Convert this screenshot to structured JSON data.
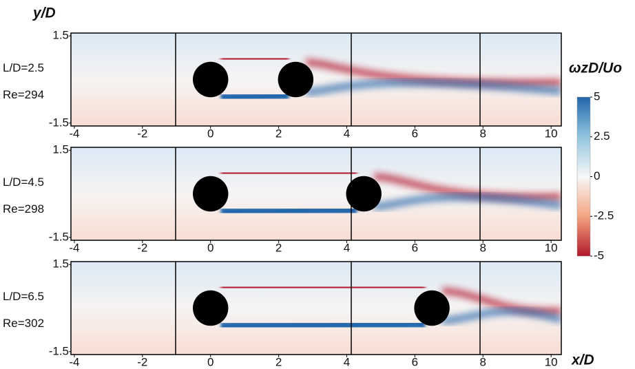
{
  "chart_data": [
    {
      "type": "contour",
      "y_label": "y/D",
      "annotations": [
        "L/D=2.5",
        "Re=294"
      ],
      "cylinders": [
        0,
        2.5
      ],
      "xlim": [
        -4.1,
        10.3
      ],
      "ylim": [
        -1.6,
        1.6
      ],
      "xticks": [
        -4,
        -2,
        0,
        2,
        4,
        6,
        8,
        10
      ],
      "yticks": [
        1.5,
        -1.5
      ]
    },
    {
      "type": "contour",
      "annotations": [
        "L/D=4.5",
        "Re=298"
      ],
      "cylinders": [
        0,
        4.5
      ],
      "xlim": [
        -4.1,
        10.3
      ],
      "ylim": [
        -1.6,
        1.6
      ],
      "xticks": [
        -4,
        -2,
        0,
        2,
        4,
        6,
        8,
        10
      ],
      "yticks": [
        1.5,
        -1.5
      ]
    },
    {
      "type": "contour",
      "x_label": "x/D",
      "annotations": [
        "L/D=6.5",
        "Re=302"
      ],
      "cylinders": [
        0,
        6.5
      ],
      "xlim": [
        -4.1,
        10.3
      ],
      "ylim": [
        -1.6,
        1.6
      ],
      "xticks": [
        -4,
        -2,
        0,
        2,
        4,
        6,
        8,
        10
      ],
      "yticks": [
        1.5,
        -1.5
      ]
    }
  ],
  "colorbar": {
    "label": "ωzD/Uo",
    "lim": [
      -5,
      5
    ],
    "ticks": [
      5,
      2.5,
      0,
      -2.5,
      -5
    ],
    "colors": [
      "#b2182b",
      "#f4a582",
      "#f7f7f7",
      "#92c5de",
      "#2166ac"
    ]
  }
}
